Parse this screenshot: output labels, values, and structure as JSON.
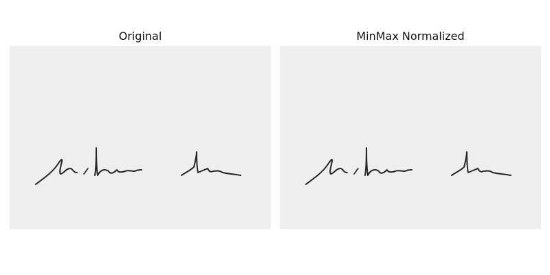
{
  "panels": [
    {
      "title": "Original",
      "content": "handwritten-signature-scan"
    },
    {
      "title": "MinMax Normalized",
      "content": "handwritten-signature-scan"
    }
  ],
  "colors": {
    "background": "#ffffff",
    "paper": "#ececec",
    "ink": "#222222"
  }
}
